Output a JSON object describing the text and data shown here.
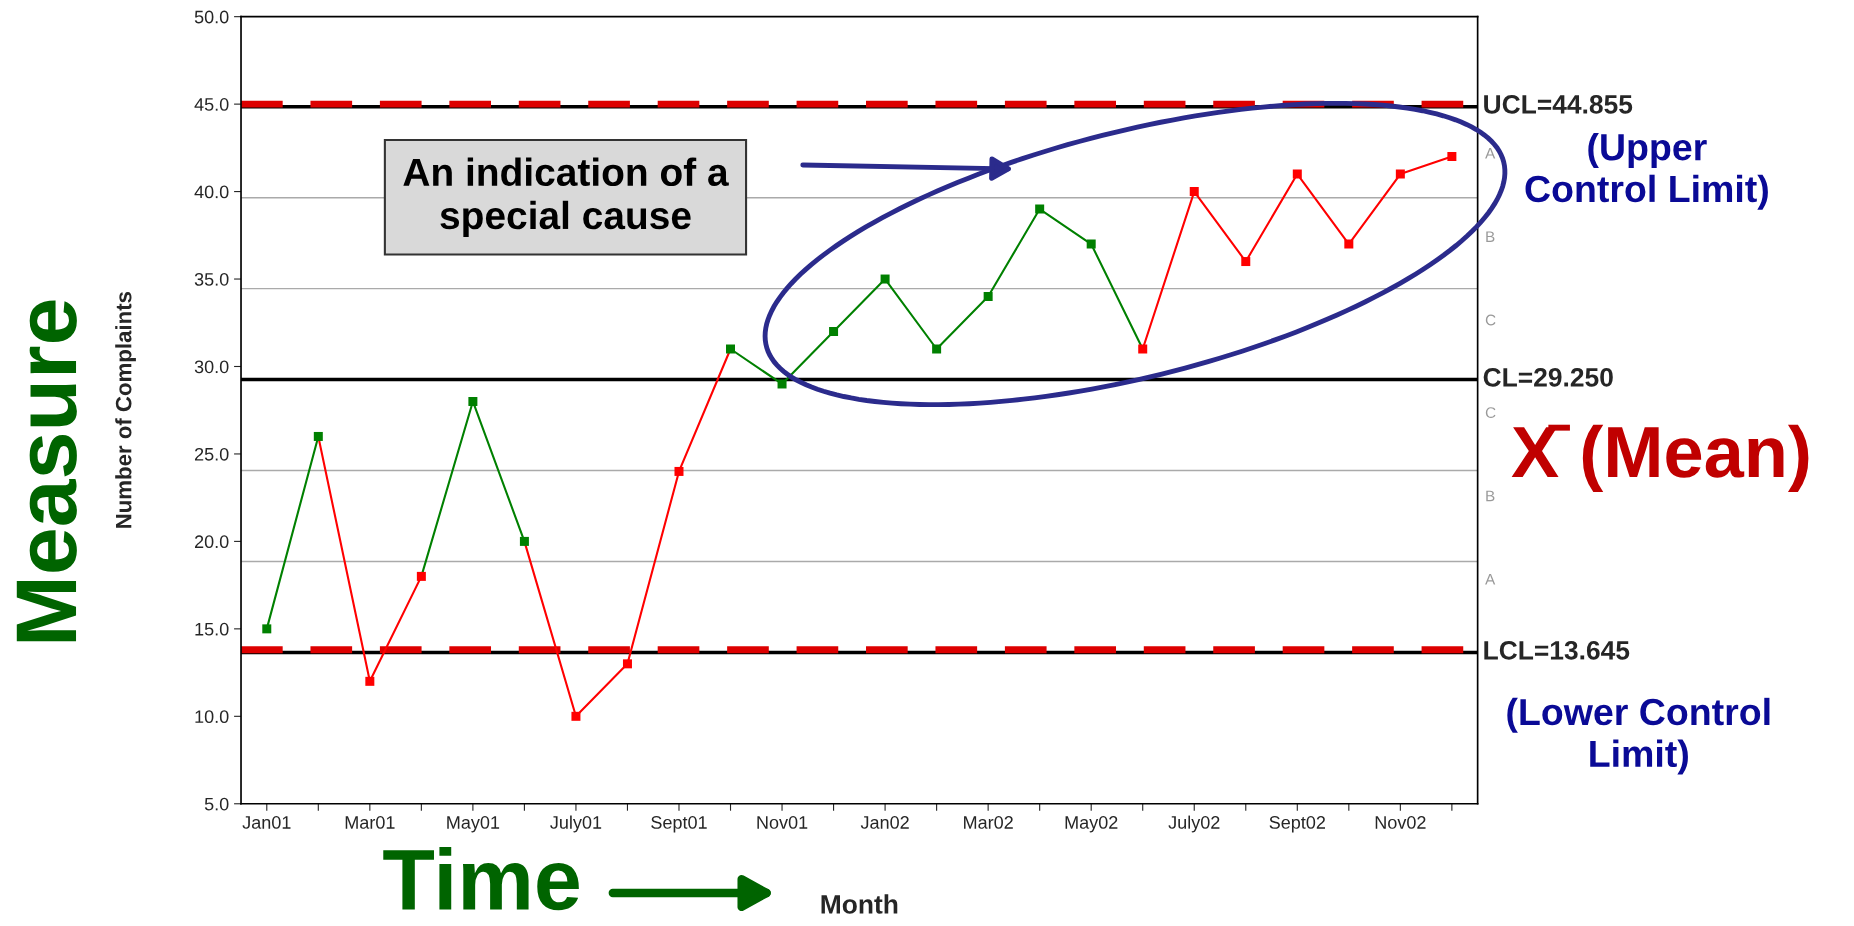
{
  "chart_data": {
    "type": "line",
    "xlabel": "Month",
    "ylabel": "Number of Complaints",
    "categories": [
      "Jan01",
      null,
      "Mar01",
      null,
      "May01",
      null,
      "July01",
      null,
      "Sept01",
      null,
      "Nov01",
      null,
      "Jan02",
      null,
      "Mar02",
      null,
      "May02",
      null,
      "July02",
      null,
      "Sept02",
      null,
      "Nov02",
      null
    ],
    "series": [
      {
        "type": "scatter",
        "marker": "square",
        "values": [
          15,
          26,
          12,
          18,
          28,
          20,
          10,
          13,
          24,
          31,
          29,
          32,
          35,
          31,
          34,
          39,
          37,
          31,
          40,
          36,
          41,
          37,
          41,
          42
        ],
        "colors": [
          "#008000",
          "#008000",
          "#ff0000",
          "#ff0000",
          "#008000",
          "#008000",
          "#ff0000",
          "#ff0000",
          "#ff0000",
          "#008000",
          "#008000",
          "#008000",
          "#008000",
          "#008000",
          "#008000",
          "#008000",
          "#008000",
          "#ff0000",
          "#ff0000",
          "#ff0000",
          "#ff0000",
          "#ff0000",
          "#ff0000",
          "#ff0000"
        ]
      },
      {
        "type": "line",
        "marker": "none",
        "color": "#008000",
        "values": [
          15,
          26,
          null,
          18,
          28,
          20,
          null,
          null,
          null,
          31,
          29,
          32,
          35,
          31,
          34,
          39,
          37,
          31,
          null,
          null,
          null,
          null,
          null,
          null
        ]
      },
      {
        "type": "line",
        "marker": "none",
        "color": "#ff0000",
        "values": [
          null,
          26,
          12,
          18,
          null,
          20,
          10,
          13,
          24,
          31,
          null,
          null,
          null,
          null,
          null,
          null,
          null,
          31,
          40,
          36,
          41,
          37,
          41,
          42
        ]
      }
    ],
    "ylim": [
      5,
      50
    ],
    "yticks": [
      {
        "value": 5,
        "label": "5.0"
      },
      {
        "value": 10,
        "label": "10.0"
      },
      {
        "value": 15,
        "label": "15.0"
      },
      {
        "value": 20,
        "label": "20.0"
      },
      {
        "value": 25,
        "label": "25.0"
      },
      {
        "value": 30,
        "label": "30.0"
      },
      {
        "value": 35,
        "label": "35.0"
      },
      {
        "value": 40,
        "label": "40.0"
      },
      {
        "value": 45,
        "label": "45.0"
      },
      {
        "value": 50,
        "label": "50.0"
      }
    ],
    "grid": false,
    "ref_lines": [
      {
        "axis": "y",
        "value": 39.65,
        "label": null,
        "color": "#aaaaaa",
        "line_style": "solid"
      },
      {
        "axis": "y",
        "value": 34.45,
        "label": null,
        "color": "#aaaaaa",
        "line_style": "solid"
      },
      {
        "axis": "y",
        "value": 24.05,
        "label": null,
        "color": "#aaaaaa",
        "line_style": "solid"
      },
      {
        "axis": "y",
        "value": 18.85,
        "label": null,
        "color": "#aaaaaa",
        "line_style": "solid"
      },
      {
        "axis": "y",
        "value": 44.855,
        "label": "UCL=44.855",
        "color": "#000000",
        "line_style": "solid"
      },
      {
        "axis": "y",
        "value": 29.25,
        "label": "CL=29.250",
        "color": "#000000",
        "line_style": "solid"
      },
      {
        "axis": "y",
        "value": 13.645,
        "label": "LCL=13.645",
        "color": "#000000",
        "line_style": "solid"
      },
      {
        "axis": "y",
        "value": 45.0,
        "label": null,
        "color": "#dd0000",
        "line_style": "dashed"
      },
      {
        "axis": "y",
        "value": 13.8,
        "label": null,
        "color": "#dd0000",
        "line_style": "dashed"
      }
    ],
    "annotations": [
      "An indication of a\nspecial cause",
      "Measure",
      "Time",
      "(Upper\nControl Limit)",
      "X̄ (Mean)",
      "(Lower Control\nLimit)",
      "A",
      "B",
      "C",
      "C",
      "B",
      "A"
    ]
  }
}
